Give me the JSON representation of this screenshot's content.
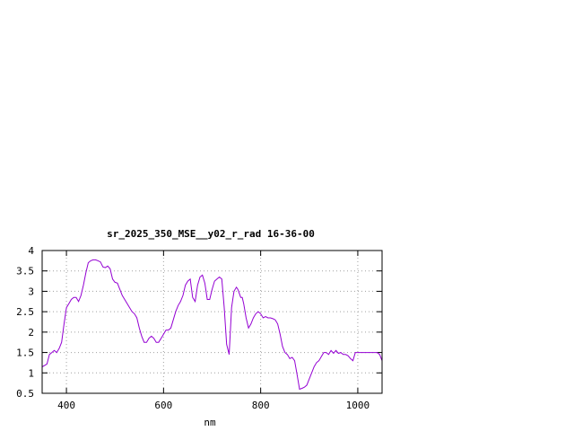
{
  "chart_data": {
    "type": "line",
    "title": "sr_2025_350_MSE__y02_r_rad 16-36-00",
    "xlabel": "nm",
    "ylabel": "",
    "xlim": [
      350,
      1050
    ],
    "ylim": [
      0.5,
      4
    ],
    "x_ticks": [
      400,
      600,
      800,
      1000
    ],
    "y_ticks": [
      0.5,
      1,
      1.5,
      2,
      2.5,
      3,
      3.5,
      4
    ],
    "x_tick_labels": [
      "400",
      "600",
      "800",
      "1000"
    ],
    "y_tick_labels": [
      "0.5",
      "1",
      "1.5",
      "2",
      "2.5",
      "3",
      "3.5",
      "4"
    ],
    "grid": true,
    "line_color": "#9400d3",
    "series": [
      {
        "x": [
          350,
          355,
          360,
          365,
          370,
          375,
          380,
          385,
          390,
          395,
          400,
          405,
          410,
          415,
          420,
          425,
          430,
          435,
          440,
          445,
          450,
          455,
          460,
          465,
          470,
          475,
          480,
          485,
          490,
          495,
          500,
          505,
          510,
          515,
          520,
          525,
          530,
          535,
          540,
          545,
          550,
          555,
          560,
          565,
          570,
          575,
          580,
          585,
          590,
          595,
          600,
          605,
          610,
          615,
          620,
          625,
          630,
          635,
          640,
          645,
          650,
          655,
          660,
          665,
          670,
          675,
          680,
          685,
          690,
          695,
          700,
          705,
          710,
          715,
          720,
          725,
          730,
          735,
          740,
          745,
          750,
          753,
          756,
          759,
          762,
          765,
          770,
          775,
          780,
          785,
          790,
          795,
          800,
          805,
          810,
          815,
          820,
          825,
          830,
          835,
          840,
          845,
          850,
          855,
          860,
          865,
          870,
          875,
          880,
          885,
          890,
          895,
          900,
          905,
          910,
          915,
          920,
          925,
          930,
          935,
          940,
          945,
          950,
          955,
          960,
          965,
          970,
          975,
          980,
          985,
          990,
          995,
          1000,
          1005,
          1010,
          1015,
          1020,
          1025,
          1030,
          1035,
          1040,
          1045,
          1050
        ],
        "y": [
          1.15,
          1.18,
          1.22,
          1.45,
          1.5,
          1.55,
          1.5,
          1.6,
          1.75,
          2.2,
          2.6,
          2.7,
          2.8,
          2.85,
          2.85,
          2.75,
          2.9,
          3.15,
          3.45,
          3.7,
          3.75,
          3.77,
          3.77,
          3.75,
          3.72,
          3.6,
          3.58,
          3.62,
          3.55,
          3.3,
          3.22,
          3.2,
          3.05,
          2.9,
          2.8,
          2.7,
          2.6,
          2.5,
          2.45,
          2.35,
          2.1,
          1.9,
          1.75,
          1.75,
          1.85,
          1.9,
          1.85,
          1.75,
          1.75,
          1.85,
          1.95,
          2.05,
          2.05,
          2.1,
          2.3,
          2.5,
          2.65,
          2.75,
          2.9,
          3.15,
          3.25,
          3.3,
          2.85,
          2.75,
          3.15,
          3.35,
          3.4,
          3.2,
          2.8,
          2.8,
          3.05,
          3.25,
          3.3,
          3.35,
          3.3,
          2.6,
          1.7,
          1.45,
          2.6,
          3.0,
          3.1,
          3.05,
          2.95,
          2.85,
          2.85,
          2.7,
          2.35,
          2.1,
          2.2,
          2.35,
          2.45,
          2.5,
          2.45,
          2.35,
          2.38,
          2.35,
          2.35,
          2.33,
          2.3,
          2.2,
          1.95,
          1.65,
          1.5,
          1.45,
          1.35,
          1.38,
          1.3,
          0.95,
          0.6,
          0.62,
          0.65,
          0.7,
          0.85,
          1.0,
          1.15,
          1.25,
          1.3,
          1.4,
          1.5,
          1.5,
          1.45,
          1.55,
          1.48,
          1.55,
          1.48,
          1.5,
          1.45,
          1.45,
          1.42,
          1.35,
          1.3,
          1.5,
          1.5,
          1.5,
          1.5,
          1.5,
          1.5,
          1.5,
          1.5,
          1.5,
          1.5,
          1.45,
          1.3
        ]
      }
    ]
  }
}
